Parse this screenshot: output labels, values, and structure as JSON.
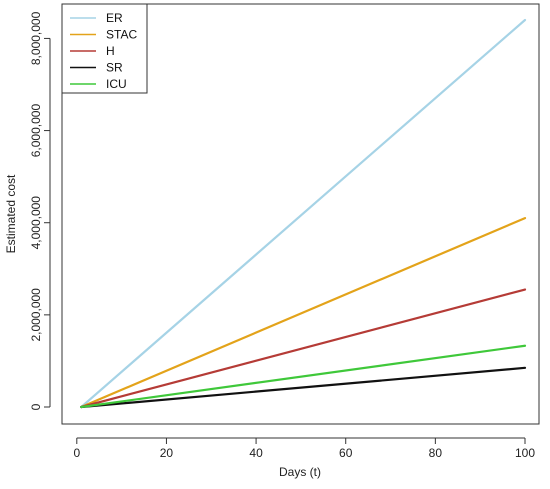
{
  "chart_data": {
    "type": "line",
    "title": "",
    "xlabel": "Days (t)",
    "ylabel": "Estimated cost",
    "xlim": [
      1,
      100
    ],
    "ylim": [
      0,
      8500000
    ],
    "xticks": [
      0,
      20,
      40,
      60,
      80,
      100
    ],
    "xtick_labels": [
      "0",
      "20",
      "40",
      "60",
      "80",
      "100"
    ],
    "yticks": [
      0,
      2000000,
      4000000,
      6000000,
      8000000
    ],
    "ytick_labels": [
      "0",
      "2,000,000",
      "4,000,000",
      "6,000,000",
      "8,000,000"
    ],
    "grid": false,
    "legend_position": "top-left",
    "series": [
      {
        "name": "ER",
        "color": "#a6d3e6",
        "x": [
          1,
          100
        ],
        "y": [
          0,
          8400000
        ]
      },
      {
        "name": "STAC",
        "color": "#e3a31a",
        "x": [
          1,
          100
        ],
        "y": [
          0,
          4100000
        ]
      },
      {
        "name": "H",
        "color": "#b53b36",
        "x": [
          1,
          100
        ],
        "y": [
          0,
          2550000
        ]
      },
      {
        "name": "SR",
        "color": "#111111",
        "x": [
          1,
          100
        ],
        "y": [
          0,
          850000
        ]
      },
      {
        "name": "ICU",
        "color": "#3fc83a",
        "x": [
          1,
          100
        ],
        "y": [
          0,
          1330000
        ]
      }
    ]
  }
}
